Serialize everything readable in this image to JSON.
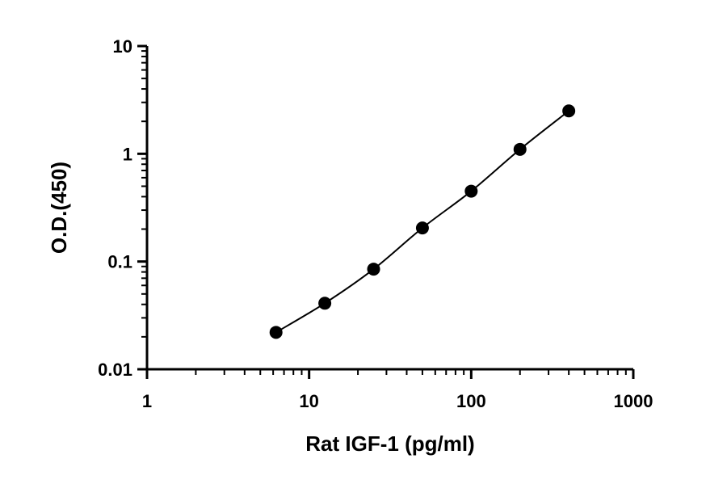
{
  "chart_data": {
    "type": "scatter",
    "title": "",
    "xlabel": "Rat IGF-1 (pg/ml)",
    "ylabel": "O.D.(450)",
    "x_scale": "log",
    "y_scale": "log",
    "xlim": [
      1,
      1000
    ],
    "ylim": [
      0.01,
      10
    ],
    "x_ticks": [
      1,
      10,
      100,
      1000
    ],
    "x_tick_labels": [
      "1",
      "10",
      "100",
      "1000"
    ],
    "y_ticks": [
      0.01,
      0.1,
      1,
      10
    ],
    "y_tick_labels": [
      "0.01",
      "0.1",
      "1",
      "10"
    ],
    "grid": false,
    "legend": "none",
    "series": [
      {
        "x": [
          6.25,
          12.5,
          25,
          50,
          100,
          200,
          400
        ],
        "y": [
          0.022,
          0.041,
          0.085,
          0.205,
          0.45,
          1.1,
          2.5
        ],
        "marker": "circle",
        "color": "#000000",
        "fit_line": true
      }
    ]
  }
}
